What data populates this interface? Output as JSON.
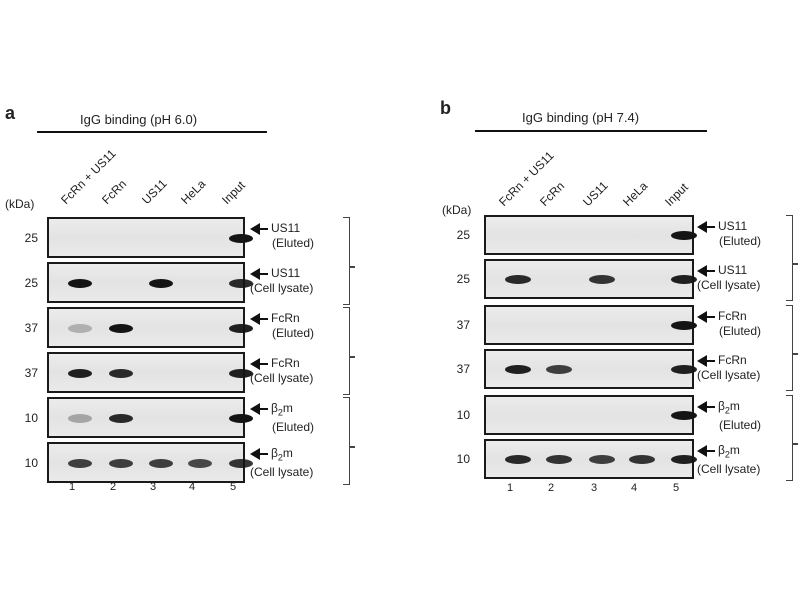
{
  "panels": [
    {
      "letter": "a",
      "title": "IgG binding (pH 6.0)",
      "kda_label": "(kDa)",
      "lanes": [
        "FcRn + US11",
        "FcRn",
        "US11",
        "HeLa",
        "Input"
      ],
      "lane_numbers": [
        "1",
        "2",
        "3",
        "4",
        "5"
      ],
      "blots": [
        {
          "mw": "25",
          "protein": "US11",
          "sample": "(Eluted)",
          "protein_sub": "",
          "protein_tail": "",
          "bands": [
            0,
            0,
            0,
            0,
            1
          ]
        },
        {
          "mw": "25",
          "protein": "US11",
          "sample": "(Cell lysate)",
          "protein_sub": "",
          "protein_tail": "",
          "bands": [
            1,
            0,
            1,
            0,
            0.9
          ]
        },
        {
          "mw": "37",
          "protein": "FcRn",
          "sample": "(Eluted)",
          "protein_sub": "",
          "protein_tail": "",
          "bands": [
            0.25,
            1,
            0,
            0,
            0.95
          ]
        },
        {
          "mw": "37",
          "protein": "FcRn",
          "sample": "(Cell lysate)",
          "protein_sub": "",
          "protein_tail": "",
          "bands": [
            0.95,
            0.9,
            0,
            0,
            0.95
          ]
        },
        {
          "mw": "10",
          "protein": "β",
          "sample": "(Eluted)",
          "protein_sub": "2",
          "protein_tail": "m",
          "bands": [
            0.3,
            0.9,
            0,
            0,
            1
          ]
        },
        {
          "mw": "10",
          "protein": "β",
          "sample": "(Cell lysate)",
          "protein_sub": "2",
          "protein_tail": "m",
          "bands": [
            0.8,
            0.8,
            0.8,
            0.75,
            0.85
          ]
        }
      ]
    },
    {
      "letter": "b",
      "title": "IgG binding (pH 7.4)",
      "kda_label": "(kDa)",
      "lanes": [
        "FcRn + US11",
        "FcRn",
        "US11",
        "HeLa",
        "Input"
      ],
      "lane_numbers": [
        "1",
        "2",
        "3",
        "4",
        "5"
      ],
      "blots": [
        {
          "mw": "25",
          "protein": "US11",
          "sample": "(Eluted)",
          "protein_sub": "",
          "protein_tail": "",
          "bands": [
            0,
            0,
            0,
            0,
            1
          ]
        },
        {
          "mw": "25",
          "protein": "US11",
          "sample": "(Cell lysate)",
          "protein_sub": "",
          "protein_tail": "",
          "bands": [
            0.9,
            0,
            0.85,
            0,
            0.95
          ]
        },
        {
          "mw": "37",
          "protein": "FcRn",
          "sample": "(Eluted)",
          "protein_sub": "",
          "protein_tail": "",
          "bands": [
            0,
            0,
            0,
            0,
            1
          ]
        },
        {
          "mw": "37",
          "protein": "FcRn",
          "sample": "(Cell lysate)",
          "protein_sub": "",
          "protein_tail": "",
          "bands": [
            0.95,
            0.8,
            0,
            0,
            0.95
          ]
        },
        {
          "mw": "10",
          "protein": "β",
          "sample": "(Eluted)",
          "protein_sub": "2",
          "protein_tail": "m",
          "bands": [
            0,
            0,
            0,
            0,
            1
          ]
        },
        {
          "mw": "10",
          "protein": "β",
          "sample": "(Cell lysate)",
          "protein_sub": "2",
          "protein_tail": "m",
          "bands": [
            0.9,
            0.85,
            0.8,
            0.85,
            0.95
          ]
        }
      ]
    }
  ]
}
